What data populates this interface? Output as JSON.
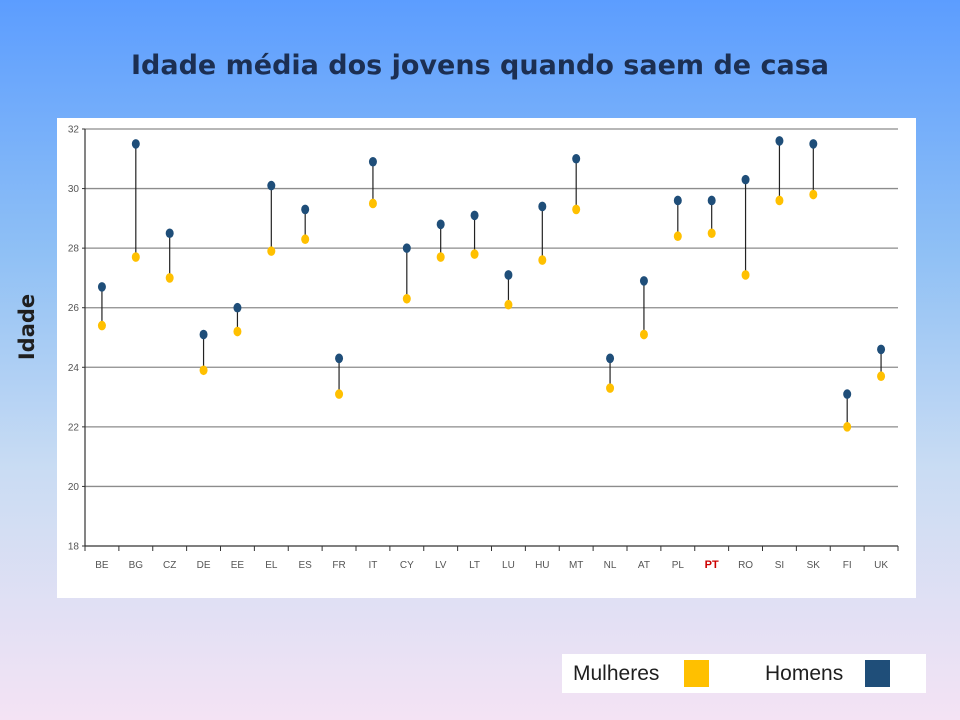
{
  "slide": {
    "title": "Idade média dos jovens quando saem de casa"
  },
  "chart_data": {
    "type": "scatter",
    "title": "Idade média dos jovens quando saem de casa",
    "ylabel": "Idade",
    "xlabel": "",
    "ylim": [
      18,
      32
    ],
    "yticks": [
      18,
      20,
      22,
      24,
      26,
      28,
      30,
      32
    ],
    "grid": true,
    "legend_position": "bottom-right",
    "categories": [
      "BE",
      "BG",
      "CZ",
      "DE",
      "EE",
      "EL",
      "ES",
      "FR",
      "IT",
      "CY",
      "LV",
      "LT",
      "LU",
      "HU",
      "MT",
      "NL",
      "AT",
      "PL",
      "PT",
      "RO",
      "SI",
      "SK",
      "FI",
      "UK"
    ],
    "highlight_category": "PT",
    "highlight_color": "#cc0000",
    "series": [
      {
        "name": "Mulheres",
        "color": "#ffc000",
        "values": [
          25.4,
          27.7,
          27.0,
          23.9,
          25.2,
          27.9,
          28.3,
          23.1,
          29.5,
          26.3,
          27.7,
          27.8,
          26.1,
          27.6,
          29.3,
          23.3,
          25.1,
          28.4,
          28.5,
          27.1,
          29.6,
          29.8,
          22.0,
          23.7
        ]
      },
      {
        "name": "Homens",
        "color": "#1f4e79",
        "values": [
          26.7,
          31.5,
          28.5,
          25.1,
          26.0,
          30.1,
          29.3,
          24.3,
          30.9,
          28.0,
          28.8,
          29.1,
          27.1,
          29.4,
          31.0,
          24.3,
          26.9,
          29.6,
          29.6,
          30.3,
          31.6,
          31.5,
          23.1,
          24.6
        ]
      }
    ]
  },
  "legend": {
    "women_label": "Mulheres",
    "men_label": "Homens",
    "women_color": "#ffc000",
    "men_color": "#1f4e79"
  }
}
